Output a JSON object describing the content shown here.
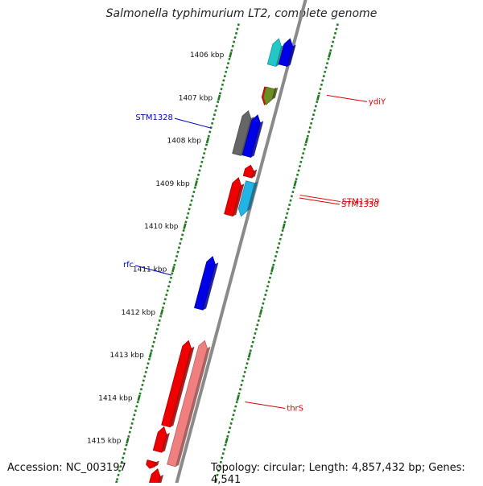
{
  "title": "Salmonella typhimurium LT2, complete genome",
  "accession_text": "Accession: NC_003197",
  "topology_text": "Topology: circular; Length: 4,857,432 bp; Genes: 4,541",
  "colors": {
    "backbone": "#8a8a8a",
    "ticks": "#1e7a1e",
    "left_label": "#0000cc",
    "right_label": "#dd0000"
  },
  "ticks": [
    {
      "kbp": 1406,
      "label": "1406 kbp"
    },
    {
      "kbp": 1407,
      "label": "1407 kbp"
    },
    {
      "kbp": 1408,
      "label": "1408 kbp"
    },
    {
      "kbp": 1409,
      "label": "1409 kbp"
    },
    {
      "kbp": 1410,
      "label": "1410 kbp"
    },
    {
      "kbp": 1411,
      "label": "1411 kbp"
    },
    {
      "kbp": 1412,
      "label": "1412 kbp"
    },
    {
      "kbp": 1413,
      "label": "1413 kbp"
    },
    {
      "kbp": 1414,
      "label": "1414 kbp"
    },
    {
      "kbp": 1415,
      "label": "1415 kbp"
    }
  ],
  "genes": [
    {
      "name": "",
      "start": 1405.6,
      "end": 1406.22,
      "strand": "forward",
      "color": "#22c8c8"
    },
    {
      "name": "",
      "start": 1405.6,
      "end": 1406.22,
      "strand": "forward",
      "color": "#0000e6"
    },
    {
      "name": "",
      "start": 1406.75,
      "end": 1407.14,
      "strand": "reverse",
      "color": "#ee0000"
    },
    {
      "name": "ydiY",
      "start": 1406.75,
      "end": 1407.14,
      "strand": "reverse",
      "color": "#6b8e23"
    },
    {
      "name": "",
      "start": 1407.28,
      "end": 1408.3,
      "strand": "forward",
      "color": "#666666"
    },
    {
      "name": "STM1328",
      "start": 1407.38,
      "end": 1408.34,
      "strand": "forward",
      "color": "#0000e6"
    },
    {
      "name": "",
      "start": 1408.55,
      "end": 1408.82,
      "strand": "forward",
      "color": "#ee0000"
    },
    {
      "name": "STM1329",
      "start": 1408.84,
      "end": 1409.71,
      "strand": "forward",
      "color": "#ee0000"
    },
    {
      "name": "STM1330",
      "start": 1408.94,
      "end": 1409.74,
      "strand": "reverse",
      "color": "#22b4e6"
    },
    {
      "name": "rfc",
      "start": 1410.68,
      "end": 1411.9,
      "strand": "forward",
      "color": "#0000e6"
    },
    {
      "name": "",
      "start": 1412.64,
      "end": 1414.63,
      "strand": "forward",
      "color": "#ee0000"
    },
    {
      "name": "thrS",
      "start": 1412.64,
      "end": 1415.55,
      "strand": "forward",
      "color": "#f08080"
    },
    {
      "name": "",
      "start": 1414.65,
      "end": 1415.22,
      "strand": "forward",
      "color": "#ee0000"
    },
    {
      "name": "",
      "start": 1415.45,
      "end": 1415.62,
      "strand": "reverse",
      "color": "#ee0000"
    },
    {
      "name": "",
      "start": 1415.63,
      "end": 1416.0,
      "strand": "forward",
      "color": "#ee0000"
    }
  ]
}
